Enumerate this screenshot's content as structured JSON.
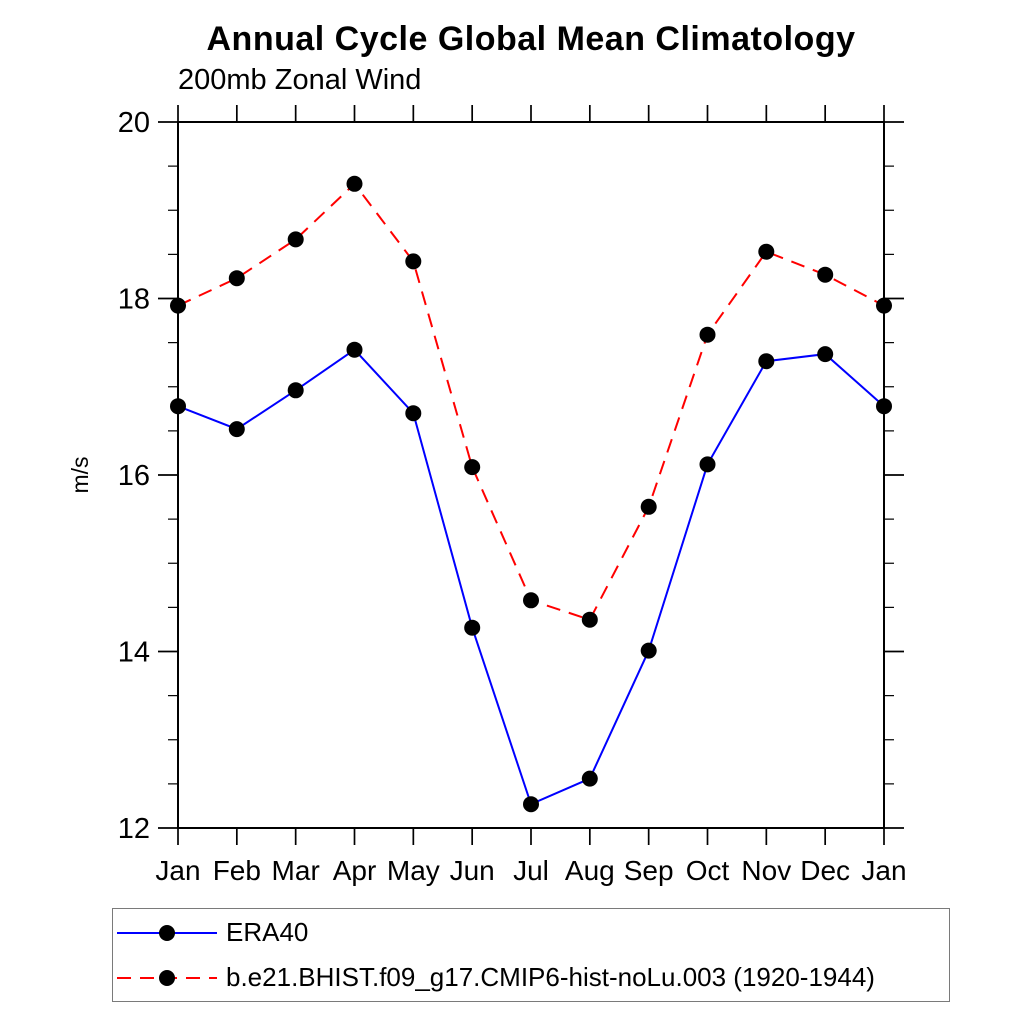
{
  "chart_data": {
    "type": "line",
    "title": "Annual Cycle Global Mean Climatology",
    "subtitle": "200mb Zonal Wind",
    "ylabel": "m/s",
    "categories": [
      "Jan",
      "Feb",
      "Mar",
      "Apr",
      "May",
      "Jun",
      "Jul",
      "Aug",
      "Sep",
      "Oct",
      "Nov",
      "Dec",
      "Jan"
    ],
    "ylim": [
      12,
      20
    ],
    "yticks_major": [
      12,
      14,
      16,
      18,
      20
    ],
    "ytick_minor_step": 0.5,
    "grid": false,
    "legend_position": "bottom-left-box",
    "marker": "filled-circle",
    "marker_color": "#000000",
    "axis_color": "#000000",
    "series": [
      {
        "name": "ERA40",
        "color": "#0000ff",
        "style": "solid",
        "values": [
          16.78,
          16.52,
          16.96,
          17.42,
          16.7,
          14.27,
          12.27,
          12.56,
          14.01,
          16.12,
          17.29,
          17.37,
          16.78
        ]
      },
      {
        "name": "b.e21.BHIST.f09_g17.CMIP6-hist-noLu.003 (1920-1944)",
        "color": "#ff0000",
        "style": "dashed",
        "values": [
          17.92,
          18.23,
          18.67,
          19.3,
          18.42,
          16.09,
          14.58,
          14.36,
          15.64,
          17.59,
          18.53,
          18.27,
          17.92
        ]
      }
    ]
  }
}
